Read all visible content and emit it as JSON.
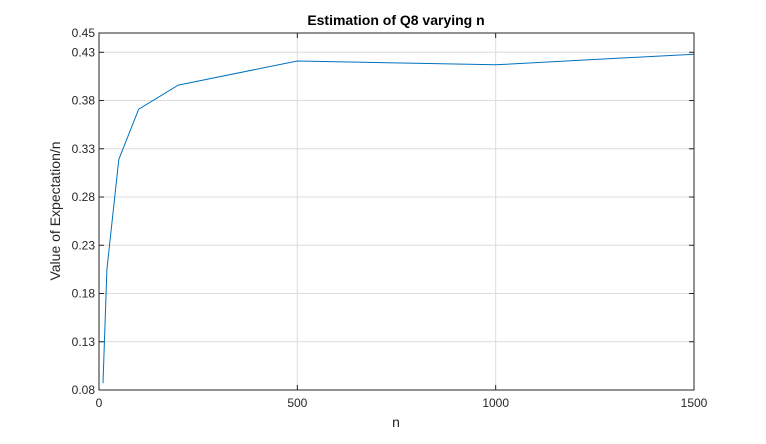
{
  "chart_data": {
    "type": "line",
    "title": "Estimation of Q8 varying n",
    "xlabel": "n",
    "ylabel": "Value of Expectation/n",
    "xlim": [
      0,
      1500
    ],
    "ylim": [
      0.08,
      0.45
    ],
    "xticks": [
      0,
      500,
      1000,
      1500
    ],
    "xtick_labels": [
      "0",
      "500",
      "1000",
      "1500"
    ],
    "yticks": [
      0.08,
      0.13,
      0.18,
      0.23,
      0.28,
      0.33,
      0.38,
      0.43,
      0.45
    ],
    "ytick_labels": [
      "0.08",
      "0.13",
      "0.18",
      "0.23",
      "0.28",
      "0.33",
      "0.38",
      "0.43",
      "0.45"
    ],
    "grid": true,
    "series": [
      {
        "x": [
          10,
          20,
          50,
          100,
          200,
          500,
          1000,
          1500
        ],
        "y": [
          0.087,
          0.205,
          0.319,
          0.371,
          0.396,
          0.421,
          0.417,
          0.428
        ],
        "color": "#0072BD"
      }
    ]
  }
}
